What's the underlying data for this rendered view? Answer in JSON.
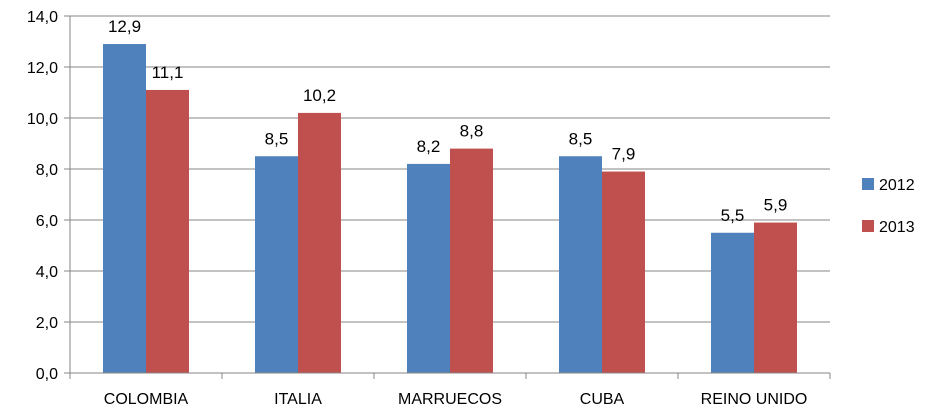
{
  "chart_data": {
    "type": "bar",
    "categories": [
      "COLOMBIA",
      "ITALIA",
      "MARRUECOS",
      "CUBA",
      "REINO UNIDO"
    ],
    "series": [
      {
        "name": "2012",
        "values": [
          12.9,
          8.5,
          8.2,
          8.5,
          5.5
        ],
        "labels": [
          "12,9",
          "8,5",
          "8,2",
          "8,5",
          "5,5"
        ],
        "color": "#4f81bd"
      },
      {
        "name": "2013",
        "values": [
          11.1,
          10.2,
          8.8,
          7.9,
          5.9
        ],
        "labels": [
          "11,1",
          "10,2",
          "8,8",
          "7,9",
          "5,9"
        ],
        "color": "#c0504d"
      }
    ],
    "ylim": [
      0,
      14
    ],
    "yticks": [
      0,
      2,
      4,
      6,
      8,
      10,
      12,
      14
    ],
    "ytick_labels": [
      "0,0",
      "2,0",
      "4,0",
      "6,0",
      "8,0",
      "10,0",
      "12,0",
      "14,0"
    ],
    "grid": true,
    "legend_position": "right",
    "gridline_color": "#868686",
    "axis_color": "#868686"
  }
}
